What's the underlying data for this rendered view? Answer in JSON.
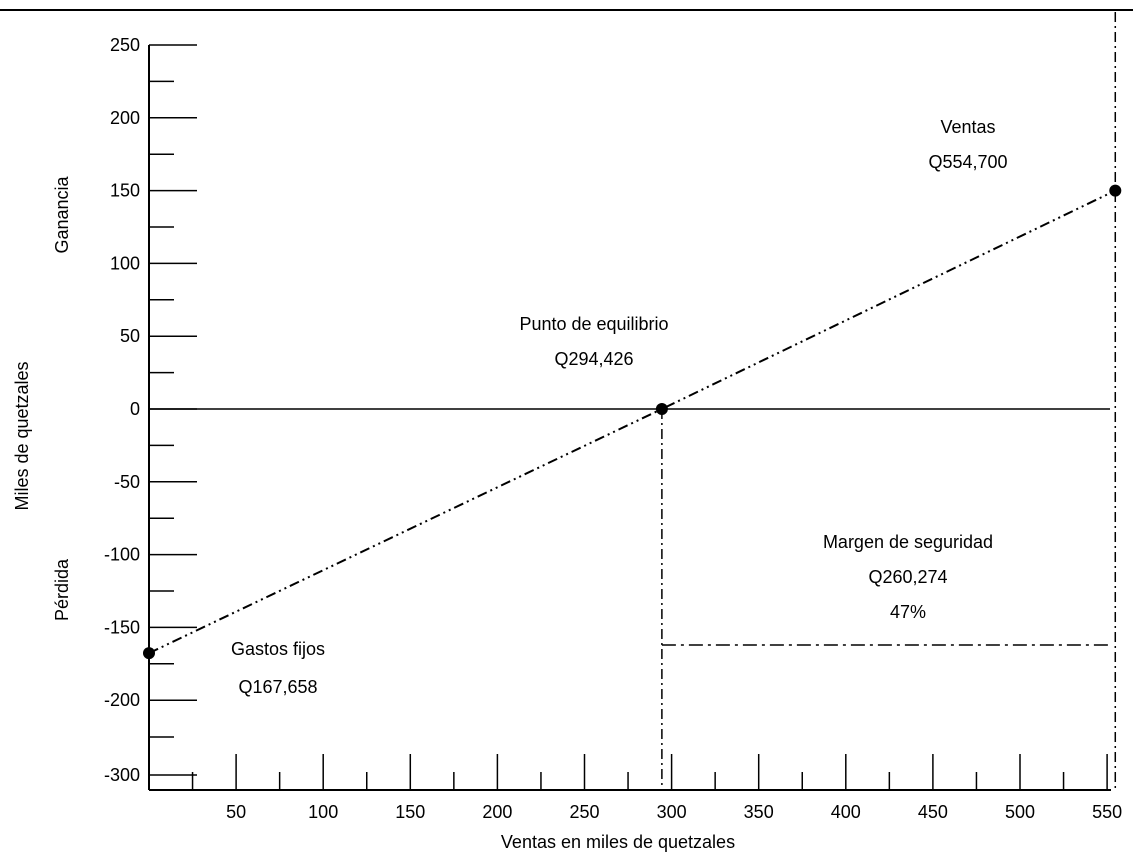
{
  "chart_data": {
    "type": "line",
    "xlabel": "Ventas en miles de quetzales",
    "ylabel": "Miles de quetzales",
    "ylabel_upper": "Ganancia",
    "ylabel_lower": "Pérdida",
    "xlim": [
      0,
      560
    ],
    "x_ticks": [
      50,
      100,
      150,
      200,
      250,
      300,
      350,
      400,
      450,
      500,
      550
    ],
    "y_ticks": [
      250,
      200,
      150,
      100,
      50,
      0,
      -50,
      -100,
      -150,
      -200,
      -300
    ],
    "series": [
      {
        "x": [
          0,
          294.426,
          554.7
        ],
        "y": [
          -167.658,
          0,
          150
        ]
      }
    ],
    "annotations": {
      "ventas": {
        "label": "Ventas",
        "value": "Q554,700"
      },
      "equilibrio": {
        "label": "Punto de equilibrio",
        "value": "Q294,426"
      },
      "margen": {
        "label": "Margen de seguridad",
        "value": "Q260,274",
        "percent": "47%"
      },
      "gastos": {
        "label": "Gastos fijos",
        "value": "Q167,658"
      }
    },
    "grid": false
  }
}
